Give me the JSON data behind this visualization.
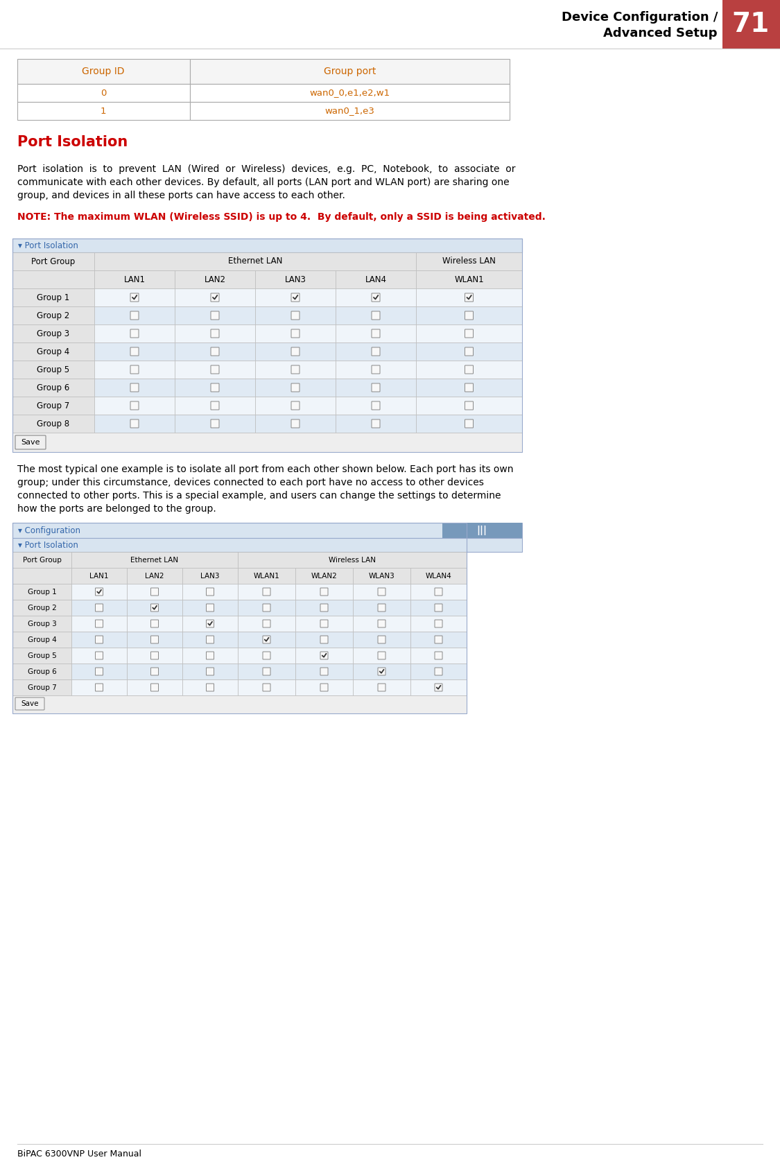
{
  "page_title_line1": "Device Configuration /",
  "page_title_line2": "Advanced Setup",
  "page_number": "71",
  "page_bg": "#ffffff",
  "header_bg": "#b94040",
  "section_title": "Port Isolation",
  "section_title_color": "#cc0000",
  "body_text_color": "#000000",
  "body_text1_lines": [
    "Port  isolation  is  to  prevent  LAN  (Wired  or  Wireless)  devices,  e.g.  PC,  Notebook,  to  associate  or",
    "communicate with each other devices. By default, all ports (LAN port and WLAN port) are sharing one",
    "group, and devices in all these ports can have access to each other."
  ],
  "note_text": "NOTE: The maximum WLAN (Wireless SSID) is up to 4.  By default, only a SSID is being activated.",
  "note_color": "#cc0000",
  "body_text2_lines": [
    "The most typical one example is to isolate all port from each other shown below. Each port has its own",
    "group; under this circumstance, devices connected to each port have no access to other devices",
    "connected to other ports. This is a special example, and users can change the settings to determine",
    "how the ports are belonged to the group."
  ],
  "footer_text": "BiPAC 6300VNP User Manual",
  "table1_headers": [
    "Group ID",
    "Group port"
  ],
  "table1_data": [
    [
      "0",
      "wan0_0,e1,e2,w1"
    ],
    [
      "1",
      "wan0_1,e3"
    ]
  ],
  "table1_border": "#aaaaaa",
  "table1_header_text_color": "#cc6600",
  "table1_cell_text_color": "#cc6600",
  "table2_groups": [
    "Group 1",
    "Group 2",
    "Group 3",
    "Group 4",
    "Group 5",
    "Group 6",
    "Group 7",
    "Group 8"
  ],
  "table2_checked": [
    [
      1,
      1,
      1,
      1,
      1
    ],
    [
      0,
      0,
      0,
      0,
      0
    ],
    [
      0,
      0,
      0,
      0,
      0
    ],
    [
      0,
      0,
      0,
      0,
      0
    ],
    [
      0,
      0,
      0,
      0,
      0
    ],
    [
      0,
      0,
      0,
      0,
      0
    ],
    [
      0,
      0,
      0,
      0,
      0
    ],
    [
      0,
      0,
      0,
      0,
      0
    ]
  ],
  "table2_row_bg_a": "#f0f5fa",
  "table2_row_bg_b": "#e0eaf4",
  "table2_header_bg": "#e4e4e4",
  "table2_border": "#bbbbbb",
  "table3_groups": [
    "Group 1",
    "Group 2",
    "Group 3",
    "Group 4",
    "Group 5",
    "Group 6",
    "Group 7"
  ],
  "table3_checked": [
    [
      1,
      0,
      0,
      0,
      0,
      0,
      0
    ],
    [
      0,
      1,
      0,
      0,
      0,
      0,
      0
    ],
    [
      0,
      0,
      1,
      0,
      0,
      0,
      0
    ],
    [
      0,
      0,
      0,
      1,
      0,
      0,
      0
    ],
    [
      0,
      0,
      0,
      0,
      1,
      0,
      0
    ],
    [
      0,
      0,
      0,
      0,
      0,
      1,
      0
    ],
    [
      0,
      0,
      0,
      0,
      0,
      0,
      1
    ]
  ],
  "table3_row_bg_a": "#f0f5fa",
  "table3_row_bg_b": "#e0eaf4",
  "table3_header_bg": "#e4e4e4",
  "table3_border": "#bbbbbb"
}
